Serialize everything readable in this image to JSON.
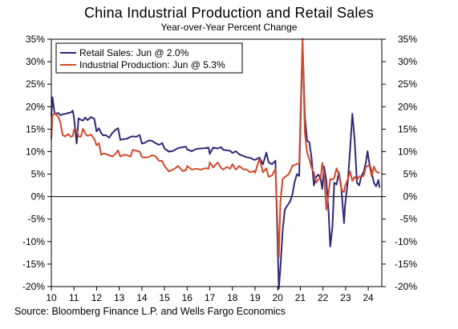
{
  "chart_data": {
    "type": "line",
    "title": "China Industrial Production and Retail Sales",
    "subtitle": "Year-over-Year Percent Change",
    "source": "Source: Bloomberg Finance L.P. and Wells Fargo Economics",
    "x_ticks": [
      "10",
      "11",
      "12",
      "13",
      "14",
      "15",
      "16",
      "17",
      "18",
      "19",
      "20",
      "21",
      "22",
      "23",
      "24"
    ],
    "xlim": [
      2010,
      2024.6
    ],
    "ylim": [
      -20,
      35
    ],
    "y_ticks": [
      35,
      30,
      25,
      20,
      15,
      10,
      5,
      0,
      -5,
      -10,
      -15,
      -20
    ],
    "y_tick_labels": [
      "35%",
      "30%",
      "25%",
      "20%",
      "15%",
      "10%",
      "5%",
      "0%",
      "-5%",
      "-10%",
      "-15%",
      "-20%"
    ],
    "zero_line": true,
    "legend_position": "top-left",
    "series": [
      {
        "name": "Retail Sales: Jun @ 2.0%",
        "color": "#2e2a78",
        "points": [
          [
            2010.0,
            17.9
          ],
          [
            2010.05,
            22.1
          ],
          [
            2010.15,
            18.4
          ],
          [
            2010.3,
            18.6
          ],
          [
            2010.4,
            18.1
          ],
          [
            2010.5,
            18.3
          ],
          [
            2010.6,
            18.4
          ],
          [
            2010.75,
            18.6
          ],
          [
            2010.85,
            18.7
          ],
          [
            2010.95,
            19.1
          ],
          [
            2011.0,
            17.6
          ],
          [
            2011.12,
            11.8
          ],
          [
            2011.2,
            17.4
          ],
          [
            2011.3,
            17.1
          ],
          [
            2011.4,
            16.9
          ],
          [
            2011.5,
            17.6
          ],
          [
            2011.6,
            17.0
          ],
          [
            2011.75,
            17.7
          ],
          [
            2011.9,
            17.3
          ],
          [
            2012.0,
            14.5
          ],
          [
            2012.1,
            15.2
          ],
          [
            2012.2,
            14.1
          ],
          [
            2012.3,
            13.6
          ],
          [
            2012.4,
            13.7
          ],
          [
            2012.55,
            13.1
          ],
          [
            2012.7,
            14.2
          ],
          [
            2012.85,
            14.9
          ],
          [
            2012.95,
            15.2
          ],
          [
            2013.05,
            12.6
          ],
          [
            2013.2,
            12.8
          ],
          [
            2013.35,
            12.9
          ],
          [
            2013.5,
            13.3
          ],
          [
            2013.6,
            13.4
          ],
          [
            2013.75,
            13.3
          ],
          [
            2013.9,
            13.7
          ],
          [
            2014.0,
            11.8
          ],
          [
            2014.15,
            12.0
          ],
          [
            2014.3,
            12.5
          ],
          [
            2014.45,
            12.4
          ],
          [
            2014.6,
            11.9
          ],
          [
            2014.75,
            11.5
          ],
          [
            2014.9,
            11.9
          ],
          [
            2015.0,
            10.7
          ],
          [
            2015.2,
            10.0
          ],
          [
            2015.4,
            10.2
          ],
          [
            2015.6,
            10.8
          ],
          [
            2015.8,
            11.0
          ],
          [
            2015.95,
            11.1
          ],
          [
            2016.0,
            10.5
          ],
          [
            2016.2,
            10.1
          ],
          [
            2016.4,
            10.6
          ],
          [
            2016.6,
            10.7
          ],
          [
            2016.8,
            10.8
          ],
          [
            2016.95,
            10.9
          ],
          [
            2017.0,
            9.5
          ],
          [
            2017.15,
            10.9
          ],
          [
            2017.35,
            10.7
          ],
          [
            2017.5,
            11.0
          ],
          [
            2017.6,
            10.4
          ],
          [
            2017.75,
            10.3
          ],
          [
            2017.9,
            10.2
          ],
          [
            2018.0,
            9.7
          ],
          [
            2018.15,
            10.1
          ],
          [
            2018.3,
            9.4
          ],
          [
            2018.5,
            9.0
          ],
          [
            2018.6,
            8.8
          ],
          [
            2018.8,
            8.6
          ],
          [
            2018.95,
            8.2
          ],
          [
            2019.0,
            8.2
          ],
          [
            2019.2,
            8.7
          ],
          [
            2019.35,
            7.2
          ],
          [
            2019.5,
            9.8
          ],
          [
            2019.6,
            7.6
          ],
          [
            2019.75,
            7.2
          ],
          [
            2019.9,
            8.0
          ],
          [
            2020.05,
            -20.5
          ],
          [
            2020.12,
            -15.8
          ],
          [
            2020.22,
            -7.5
          ],
          [
            2020.32,
            -2.8
          ],
          [
            2020.45,
            -1.8
          ],
          [
            2020.55,
            -1.1
          ],
          [
            2020.65,
            0.5
          ],
          [
            2020.75,
            3.3
          ],
          [
            2020.85,
            5.0
          ],
          [
            2020.95,
            4.6
          ],
          [
            2021.1,
            34.2
          ],
          [
            2021.2,
            17.7
          ],
          [
            2021.3,
            12.4
          ],
          [
            2021.4,
            12.1
          ],
          [
            2021.5,
            8.5
          ],
          [
            2021.6,
            2.5
          ],
          [
            2021.7,
            4.4
          ],
          [
            2021.8,
            4.9
          ],
          [
            2021.9,
            3.9
          ],
          [
            2021.97,
            1.7
          ],
          [
            2022.05,
            6.7
          ],
          [
            2022.15,
            3.5
          ],
          [
            2022.25,
            -3.5
          ],
          [
            2022.32,
            -11.1
          ],
          [
            2022.42,
            -6.7
          ],
          [
            2022.5,
            3.1
          ],
          [
            2022.6,
            2.7
          ],
          [
            2022.7,
            5.4
          ],
          [
            2022.8,
            2.5
          ],
          [
            2022.85,
            -0.5
          ],
          [
            2022.93,
            -5.9
          ],
          [
            2022.98,
            -1.8
          ],
          [
            2023.1,
            3.5
          ],
          [
            2023.2,
            10.6
          ],
          [
            2023.3,
            18.4
          ],
          [
            2023.4,
            12.7
          ],
          [
            2023.5,
            3.1
          ],
          [
            2023.6,
            2.5
          ],
          [
            2023.7,
            4.6
          ],
          [
            2023.8,
            5.5
          ],
          [
            2023.9,
            7.6
          ],
          [
            2023.97,
            10.1
          ],
          [
            2024.05,
            7.4
          ],
          [
            2024.15,
            5.5
          ],
          [
            2024.25,
            3.1
          ],
          [
            2024.35,
            2.3
          ],
          [
            2024.45,
            3.7
          ],
          [
            2024.5,
            2.0
          ]
        ]
      },
      {
        "name": "Industrial Production: Jun @ 5.3%",
        "color": "#d24a2a",
        "points": [
          [
            2010.0,
            12.8
          ],
          [
            2010.05,
            18.1
          ],
          [
            2010.15,
            18.5
          ],
          [
            2010.3,
            17.8
          ],
          [
            2010.4,
            16.5
          ],
          [
            2010.5,
            13.7
          ],
          [
            2010.6,
            13.4
          ],
          [
            2010.75,
            13.9
          ],
          [
            2010.85,
            13.3
          ],
          [
            2010.95,
            13.5
          ],
          [
            2011.0,
            14.9
          ],
          [
            2011.12,
            14.8
          ],
          [
            2011.2,
            13.4
          ],
          [
            2011.3,
            13.3
          ],
          [
            2011.4,
            15.1
          ],
          [
            2011.5,
            14.0
          ],
          [
            2011.6,
            13.5
          ],
          [
            2011.75,
            13.8
          ],
          [
            2011.9,
            12.8
          ],
          [
            2012.0,
            11.4
          ],
          [
            2012.1,
            11.9
          ],
          [
            2012.2,
            9.3
          ],
          [
            2012.3,
            9.6
          ],
          [
            2012.4,
            9.5
          ],
          [
            2012.55,
            9.2
          ],
          [
            2012.7,
            8.9
          ],
          [
            2012.85,
            9.6
          ],
          [
            2012.95,
            10.3
          ],
          [
            2013.05,
            8.9
          ],
          [
            2013.2,
            9.3
          ],
          [
            2013.35,
            9.2
          ],
          [
            2013.5,
            8.9
          ],
          [
            2013.6,
            10.4
          ],
          [
            2013.75,
            10.2
          ],
          [
            2013.9,
            10.0
          ],
          [
            2014.0,
            8.8
          ],
          [
            2014.15,
            8.7
          ],
          [
            2014.3,
            8.8
          ],
          [
            2014.45,
            9.2
          ],
          [
            2014.6,
            9.0
          ],
          [
            2014.75,
            8.0
          ],
          [
            2014.9,
            7.9
          ],
          [
            2015.0,
            6.8
          ],
          [
            2015.2,
            5.6
          ],
          [
            2015.4,
            6.1
          ],
          [
            2015.6,
            6.8
          ],
          [
            2015.8,
            5.7
          ],
          [
            2015.95,
            5.9
          ],
          [
            2016.0,
            6.8
          ],
          [
            2016.2,
            6.0
          ],
          [
            2016.4,
            6.2
          ],
          [
            2016.6,
            6.0
          ],
          [
            2016.8,
            6.3
          ],
          [
            2016.95,
            6.2
          ],
          [
            2017.0,
            7.6
          ],
          [
            2017.15,
            6.5
          ],
          [
            2017.35,
            7.6
          ],
          [
            2017.5,
            6.4
          ],
          [
            2017.6,
            6.0
          ],
          [
            2017.75,
            6.6
          ],
          [
            2017.9,
            6.2
          ],
          [
            2018.0,
            7.2
          ],
          [
            2018.15,
            6.0
          ],
          [
            2018.3,
            6.8
          ],
          [
            2018.5,
            6.0
          ],
          [
            2018.6,
            6.1
          ],
          [
            2018.8,
            5.4
          ],
          [
            2018.95,
            5.7
          ],
          [
            2019.0,
            5.3
          ],
          [
            2019.2,
            8.5
          ],
          [
            2019.35,
            5.4
          ],
          [
            2019.5,
            6.3
          ],
          [
            2019.6,
            4.4
          ],
          [
            2019.75,
            4.7
          ],
          [
            2019.9,
            6.2
          ],
          [
            2020.05,
            -13.5
          ],
          [
            2020.12,
            -1.1
          ],
          [
            2020.22,
            3.9
          ],
          [
            2020.32,
            4.4
          ],
          [
            2020.45,
            4.8
          ],
          [
            2020.55,
            5.6
          ],
          [
            2020.65,
            6.9
          ],
          [
            2020.75,
            7.0
          ],
          [
            2020.85,
            7.3
          ],
          [
            2020.95,
            7.3
          ],
          [
            2021.1,
            35.1
          ],
          [
            2021.2,
            14.1
          ],
          [
            2021.3,
            9.8
          ],
          [
            2021.4,
            8.3
          ],
          [
            2021.5,
            6.4
          ],
          [
            2021.6,
            5.3
          ],
          [
            2021.7,
            3.1
          ],
          [
            2021.8,
            3.8
          ],
          [
            2021.9,
            4.3
          ],
          [
            2021.97,
            7.5
          ],
          [
            2022.05,
            5.0
          ],
          [
            2022.15,
            -2.9
          ],
          [
            2022.25,
            0.7
          ],
          [
            2022.32,
            3.9
          ],
          [
            2022.42,
            3.8
          ],
          [
            2022.5,
            4.2
          ],
          [
            2022.6,
            6.3
          ],
          [
            2022.7,
            5.0
          ],
          [
            2022.8,
            2.2
          ],
          [
            2022.85,
            1.3
          ],
          [
            2022.93,
            1.0
          ],
          [
            2022.98,
            2.4
          ],
          [
            2023.1,
            3.9
          ],
          [
            2023.2,
            5.6
          ],
          [
            2023.3,
            3.5
          ],
          [
            2023.4,
            4.4
          ],
          [
            2023.5,
            3.7
          ],
          [
            2023.6,
            4.5
          ],
          [
            2023.7,
            4.5
          ],
          [
            2023.8,
            4.6
          ],
          [
            2023.9,
            6.6
          ],
          [
            2023.97,
            6.8
          ],
          [
            2024.05,
            7.0
          ],
          [
            2024.15,
            4.5
          ],
          [
            2024.25,
            6.7
          ],
          [
            2024.35,
            5.6
          ],
          [
            2024.45,
            5.3
          ],
          [
            2024.5,
            5.3
          ]
        ]
      }
    ]
  }
}
